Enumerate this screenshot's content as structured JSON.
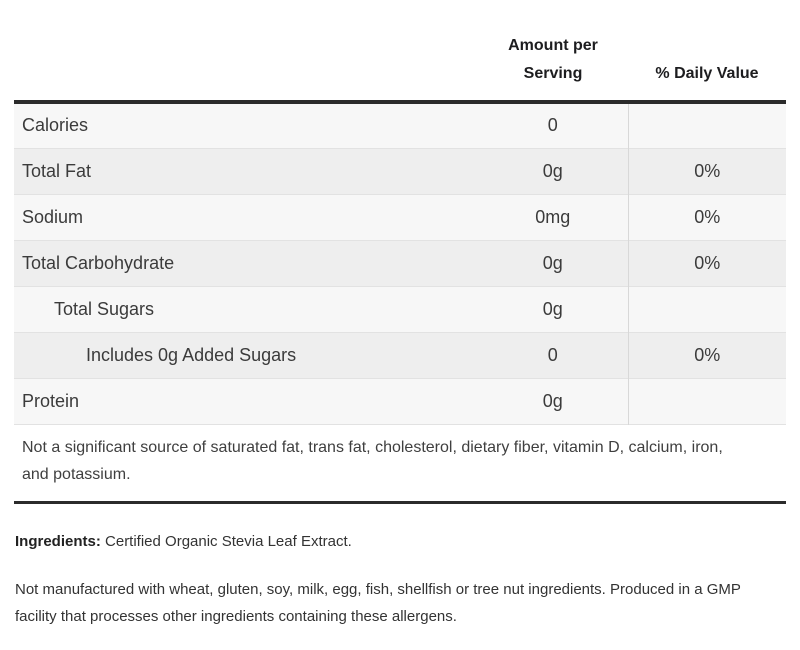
{
  "table": {
    "header": {
      "amount_col": "Amount per Serving",
      "daily_value_col": "% Daily Value"
    },
    "rows": [
      {
        "label": "Calories",
        "amount": "0",
        "daily_value": ""
      },
      {
        "label": "Total Fat",
        "amount": "0g",
        "daily_value": "0%"
      },
      {
        "label": "Sodium",
        "amount": "0mg",
        "daily_value": "0%"
      },
      {
        "label": "Total Carbohydrate",
        "amount": "0g",
        "daily_value": "0%"
      },
      {
        "label": "Total Sugars",
        "amount": "0g",
        "daily_value": ""
      },
      {
        "label": "Includes 0g Added Sugars",
        "amount": "0",
        "daily_value": "0%"
      },
      {
        "label": "Protein",
        "amount": "0g",
        "daily_value": ""
      }
    ],
    "footnote": "Not a significant source of saturated fat, trans fat, cholesterol, dietary fiber, vitamin D, calcium, iron, and potassium."
  },
  "ingredients": {
    "label": "Ingredients:",
    "text": "Certified Organic Stevia Leaf Extract."
  },
  "allergen_note": "Not manufactured with wheat, gluten, soy, milk, egg, fish, shellfish or tree nut ingredients. Produced in a GMP facility that processes other ingredients containing these allergens.",
  "colors": {
    "thick_border": "#2b2b2b",
    "row_light": "#f7f7f7",
    "row_dark": "#eeeeee",
    "row_separator": "#e2e2e2",
    "column_divider": "#d8d8d8",
    "header_text": "#1d1d1f",
    "body_text": "#3b3b3b"
  }
}
